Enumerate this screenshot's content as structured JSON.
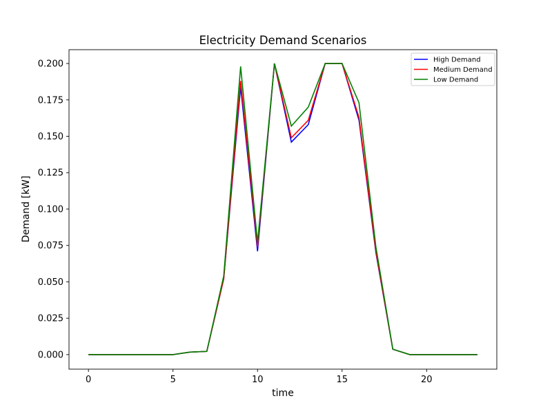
{
  "chart_data": {
    "type": "line",
    "title": "Electricity Demand Scenarios",
    "xlabel": "time",
    "ylabel": "Demand [kW]",
    "xlim": [
      -1.15,
      24.15
    ],
    "ylim": [
      -0.01,
      0.2095
    ],
    "xticks": [
      0,
      5,
      10,
      15,
      20
    ],
    "yticks": [
      0.0,
      0.025,
      0.05,
      0.075,
      0.1,
      0.125,
      0.15,
      0.175,
      0.2
    ],
    "ytick_labels": [
      "0.000",
      "0.025",
      "0.050",
      "0.075",
      "0.100",
      "0.125",
      "0.150",
      "0.175",
      "0.200"
    ],
    "grid": false,
    "legend_position": "top-right",
    "x": [
      0,
      1,
      2,
      3,
      4,
      5,
      6,
      7,
      8,
      9,
      10,
      11,
      12,
      13,
      14,
      15,
      16,
      17,
      18,
      19,
      20,
      21,
      22,
      23
    ],
    "series": [
      {
        "name": "High Demand",
        "color": "#0000ff",
        "values": [
          0,
          0,
          0,
          0,
          0,
          0,
          0.0017,
          0.0022,
          0.052,
          0.184,
          0.071,
          0.2,
          0.146,
          0.158,
          0.2,
          0.2,
          0.161,
          0.07,
          0.0037,
          0,
          0,
          0,
          0,
          0
        ]
      },
      {
        "name": "Medium Demand",
        "color": "#ff0000",
        "values": [
          0,
          0,
          0,
          0,
          0,
          0,
          0.0017,
          0.0022,
          0.052,
          0.188,
          0.074,
          0.2,
          0.149,
          0.161,
          0.2,
          0.2,
          0.163,
          0.071,
          0.0037,
          0,
          0,
          0,
          0,
          0
        ]
      },
      {
        "name": "Low Demand",
        "color": "#008000",
        "values": [
          0,
          0,
          0,
          0,
          0,
          0,
          0.0017,
          0.0022,
          0.054,
          0.198,
          0.077,
          0.2,
          0.157,
          0.17,
          0.2,
          0.2,
          0.173,
          0.074,
          0.0037,
          0,
          0,
          0,
          0,
          0
        ]
      }
    ]
  }
}
